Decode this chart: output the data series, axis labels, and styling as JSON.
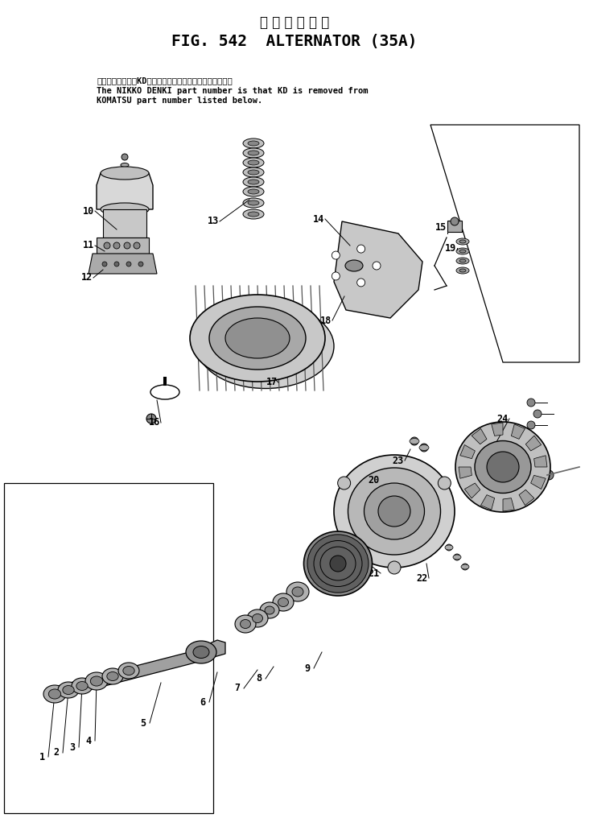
{
  "title_jp": "オ ル タ ネ ー タ",
  "title_en": "FIG. 542  ALTERNATOR (35A)",
  "note_jp": "品番のメーカ記号KDを除いたものが日興電機の品番です。",
  "note_en1": "The NIKKO DENKI part number is that KD is removed from",
  "note_en2": "KOMATSU part number listed below.",
  "bg_color": "#ffffff",
  "line_color": "#000000",
  "title_fontsize": 14,
  "label_fontsize": 9,
  "note_fontsize": 7.5
}
